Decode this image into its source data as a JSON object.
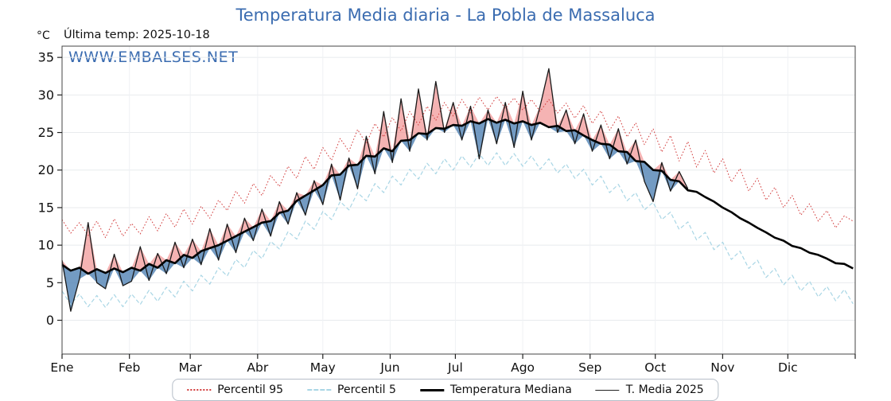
{
  "labels": {
    "unit": "°C",
    "last_temp": "Última temp: 2025-10-18",
    "watermark": "WWW.EMBALSES.NET"
  },
  "chart_data": {
    "type": "line",
    "title": "Temperatura Media diaria - La Pobla de Massaluca",
    "xlabel": "",
    "ylabel": "°C",
    "x_tick_labels": [
      "Ene",
      "Feb",
      "Mar",
      "Abr",
      "May",
      "Jun",
      "Jul",
      "Ago",
      "Sep",
      "Oct",
      "Nov",
      "Dic"
    ],
    "month_start_days": [
      0,
      31,
      59,
      90,
      120,
      151,
      181,
      212,
      243,
      273,
      304,
      334
    ],
    "days_in_year": 365,
    "ylim": [
      -4.5,
      36.5
    ],
    "y_ticks": [
      0,
      5,
      10,
      15,
      20,
      25,
      30,
      35
    ],
    "grid": true,
    "legend_position": "bottom",
    "sample_step_days": 4,
    "fills": {
      "above_color": "#ee7d7d96",
      "below_color": "#5b89b8d9"
    },
    "series": [
      {
        "name": "Percentil 95",
        "style": "dotted",
        "color": "#d23b3b",
        "values": [
          13.4,
          11.6,
          13.0,
          11.3,
          13.2,
          11.0,
          13.5,
          11.2,
          12.9,
          11.5,
          13.8,
          11.9,
          14.2,
          12.4,
          14.8,
          12.8,
          15.2,
          13.6,
          16.0,
          14.6,
          17.2,
          15.6,
          18.2,
          16.6,
          19.3,
          17.8,
          20.5,
          18.9,
          21.8,
          20.1,
          23.0,
          21.3,
          24.2,
          22.5,
          25.4,
          23.5,
          26.2,
          24.4,
          27.0,
          25.2,
          27.8,
          26.0,
          28.5,
          26.6,
          29.0,
          27.2,
          29.4,
          27.6,
          29.7,
          28.0,
          29.8,
          28.2,
          29.6,
          28.0,
          29.4,
          27.8,
          29.4,
          27.6,
          28.9,
          26.9,
          28.6,
          26.2,
          27.9,
          25.3,
          27.2,
          24.4,
          26.3,
          23.4,
          25.5,
          22.4,
          24.6,
          21.2,
          23.8,
          20.4,
          22.6,
          19.6,
          21.5,
          18.4,
          20.2,
          17.2,
          18.9,
          16.0,
          17.7,
          15.0,
          16.6,
          14.0,
          15.5,
          13.2,
          14.6,
          12.3,
          13.9,
          13.2
        ]
      },
      {
        "name": "Percentil 5",
        "style": "dashed",
        "color": "#a9d6e5",
        "values": [
          3.9,
          2.1,
          3.5,
          1.8,
          3.3,
          1.7,
          3.4,
          1.8,
          3.5,
          2.1,
          4.0,
          2.5,
          4.4,
          3.1,
          5.2,
          3.9,
          6.0,
          4.8,
          7.0,
          5.9,
          8.1,
          7.0,
          9.3,
          8.2,
          10.5,
          9.5,
          11.8,
          10.8,
          13.2,
          12.1,
          14.5,
          13.4,
          15.8,
          14.7,
          17.0,
          15.9,
          18.2,
          17.0,
          19.2,
          18.0,
          20.1,
          18.8,
          20.9,
          19.5,
          21.5,
          20.0,
          21.9,
          20.4,
          22.2,
          20.6,
          22.3,
          20.6,
          22.2,
          20.5,
          21.9,
          20.1,
          21.5,
          19.6,
          20.8,
          18.9,
          20.1,
          18.0,
          19.2,
          17.0,
          18.1,
          15.9,
          17.0,
          14.7,
          15.7,
          13.4,
          14.4,
          12.1,
          13.1,
          10.7,
          11.7,
          9.4,
          10.4,
          8.1,
          9.2,
          6.9,
          8.0,
          5.7,
          6.9,
          4.7,
          6.0,
          3.9,
          5.2,
          3.1,
          4.5,
          2.6,
          4.1,
          2.2
        ]
      },
      {
        "name": "Temperatura Mediana",
        "style": "solid-thick",
        "color": "#000000",
        "values": [
          7.4,
          6.6,
          7.0,
          6.2,
          6.8,
          6.3,
          6.9,
          6.4,
          7.0,
          6.6,
          7.5,
          7.0,
          8.0,
          7.6,
          8.7,
          8.3,
          9.2,
          9.6,
          10.0,
          10.6,
          11.2,
          11.8,
          12.4,
          13.0,
          13.2,
          14.3,
          14.6,
          15.9,
          16.6,
          17.3,
          18.0,
          19.3,
          19.4,
          20.6,
          20.7,
          21.9,
          21.8,
          22.9,
          22.5,
          23.9,
          24.0,
          24.9,
          24.8,
          25.6,
          25.5,
          26.0,
          25.9,
          26.5,
          26.2,
          26.8,
          26.3,
          26.7,
          26.2,
          26.5,
          26.0,
          26.3,
          25.7,
          25.9,
          25.2,
          25.3,
          24.6,
          24.0,
          23.5,
          23.4,
          22.5,
          22.4,
          21.2,
          21.1,
          20.0,
          19.9,
          18.7,
          18.5,
          17.3,
          17.1,
          16.4,
          15.8,
          15.0,
          14.4,
          13.6,
          13.0,
          12.3,
          11.7,
          11.0,
          10.6,
          9.9,
          9.6,
          9.0,
          8.7,
          8.2,
          7.6,
          7.5,
          6.9
        ]
      },
      {
        "name": "T. Media 2025",
        "style": "solid-thin",
        "color": "#1a1a1a",
        "values": [
          8.0,
          1.2,
          5.5,
          13.0,
          5.0,
          4.2,
          8.8,
          4.6,
          5.2,
          9.8,
          5.3,
          8.9,
          6.2,
          10.4,
          7.0,
          10.8,
          7.4,
          12.2,
          8.0,
          12.8,
          9.0,
          13.6,
          10.6,
          14.8,
          11.2,
          15.8,
          12.8,
          17.0,
          14.0,
          18.6,
          15.4,
          20.8,
          16.0,
          21.6,
          17.5,
          24.5,
          19.5,
          27.8,
          21.0,
          29.5,
          22.5,
          30.8,
          24.0,
          31.8,
          25.0,
          29.0,
          24.0,
          28.5,
          21.5,
          28.0,
          23.5,
          29.0,
          23.0,
          30.5,
          24.0,
          28.5,
          33.5,
          25.0,
          28.0,
          23.5,
          27.5,
          22.5,
          26.0,
          21.5,
          25.5,
          20.8,
          24.0,
          18.5,
          15.8,
          21.0,
          17.2,
          19.8,
          17.5
        ]
      }
    ]
  }
}
